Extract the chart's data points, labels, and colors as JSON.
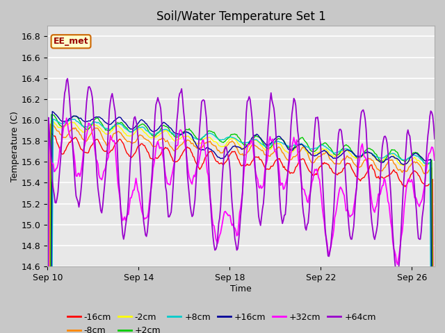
{
  "title": "Soil/Water Temperature Set 1",
  "xlabel": "Time",
  "ylabel": "Temperature (C)",
  "ylim": [
    14.6,
    16.9
  ],
  "x_tick_labels": [
    "Sep 10",
    "Sep 14",
    "Sep 18",
    "Sep 22",
    "Sep 26"
  ],
  "x_tick_positions": [
    0,
    4,
    8,
    12,
    16
  ],
  "plot_bg_color": "#e8e8e8",
  "fig_bg_color": "#c8c8c8",
  "annotation_text": "EE_met",
  "annotation_bg": "#ffffcc",
  "annotation_border": "#cc6600",
  "annotation_text_color": "#990000",
  "series": [
    {
      "label": "-16cm",
      "color": "#ff0000"
    },
    {
      "label": "-8cm",
      "color": "#ff8800"
    },
    {
      "label": "-2cm",
      "color": "#ffff00"
    },
    {
      "label": "+2cm",
      "color": "#00cc00"
    },
    {
      "label": "+8cm",
      "color": "#00cccc"
    },
    {
      "label": "+16cm",
      "color": "#000099"
    },
    {
      "label": "+32cm",
      "color": "#ff00ff"
    },
    {
      "label": "+64cm",
      "color": "#9900cc"
    }
  ],
  "grid_color": "#ffffff",
  "legend_fontsize": 9,
  "title_fontsize": 12
}
